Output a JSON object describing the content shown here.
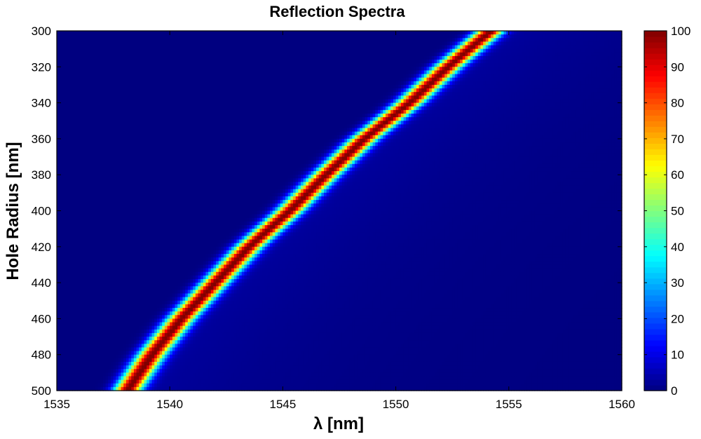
{
  "chart_data": {
    "type": "heatmap",
    "title": "Reflection Spectra",
    "xlabel": "λ [nm]",
    "ylabel": "Hole Radius [nm]",
    "xlim": [
      1535,
      1560
    ],
    "ylim": [
      300,
      500
    ],
    "y_reversed": true,
    "xticks": [
      "1535",
      "1540",
      "1545",
      "1550",
      "1555",
      "1560"
    ],
    "yticks": [
      "300",
      "320",
      "340",
      "360",
      "380",
      "400",
      "420",
      "440",
      "460",
      "480",
      "500"
    ],
    "colorbar": {
      "colormap": "jet",
      "range": [
        0,
        100
      ],
      "ticks": [
        "0",
        "10",
        "20",
        "30",
        "40",
        "50",
        "60",
        "70",
        "80",
        "90",
        "100"
      ]
    },
    "series": [
      {
        "description": "peak reflection wavelength (nm) vs hole radius (nm), peak value 100",
        "radius": [
          300,
          320,
          340,
          360,
          380,
          400,
          420,
          440,
          460,
          480,
          500
        ],
        "peak_wavelength": [
          1554.2,
          1552.3,
          1550.6,
          1548.6,
          1546.9,
          1545.3,
          1543.5,
          1542.0,
          1540.5,
          1539.2,
          1538.1
        ],
        "peak_value": 100
      }
    ]
  }
}
